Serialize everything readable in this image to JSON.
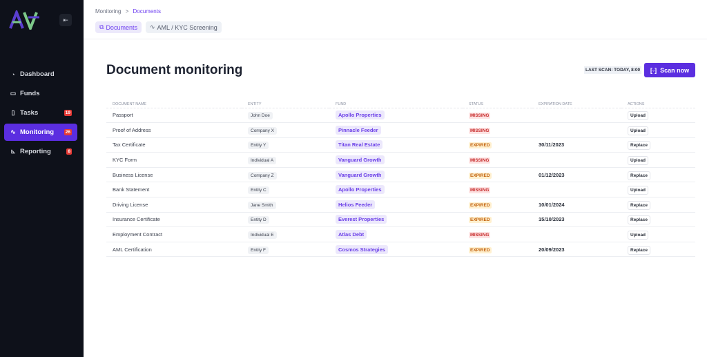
{
  "sidebar": {
    "logo_text": "AV",
    "items": [
      {
        "label": "Dashboard",
        "icon": "gauge-icon"
      },
      {
        "label": "Funds",
        "icon": "briefcase-icon"
      },
      {
        "label": "Tasks",
        "icon": "clipboard-icon",
        "badge": "19"
      },
      {
        "label": "Monitoring",
        "icon": "activity-icon",
        "badge": "26",
        "active": true
      },
      {
        "label": "Reporting",
        "icon": "chart-icon",
        "badge": "8"
      }
    ]
  },
  "breadcrumb": {
    "parent": "Monitoring",
    "separator": ">",
    "current": "Documents"
  },
  "tabs": [
    {
      "label": "Documents",
      "active": true
    },
    {
      "label": "AML / KYC Screening"
    }
  ],
  "page_title": "Document monitoring",
  "last_scan": "LAST SCAN: TODAY, 8:00",
  "scan_button": "Scan now",
  "colors": {
    "accent": "#5b2ee0",
    "sidebar": "#0e111a",
    "missing": "#c62828",
    "expired": "#c2610c"
  },
  "table": {
    "columns": [
      "DOCUMENT NAME",
      "ENTITY",
      "FUND",
      "STATUS",
      "EXPIRATION DATE",
      "ACTIONS"
    ],
    "rows": [
      {
        "name": "Passport",
        "entity": "John Doe",
        "fund": "Apollo Properties",
        "status": "MISSING",
        "date": "",
        "action": "Upload"
      },
      {
        "name": "Proof of Address",
        "entity": "Company X",
        "fund": "Pinnacle Feeder",
        "status": "MISSING",
        "date": "",
        "action": "Upload"
      },
      {
        "name": "Tax Certificate",
        "entity": "Entity Y",
        "fund": "Titan Real Estate",
        "status": "EXPIRED",
        "date": "30/11/2023",
        "action": "Replace"
      },
      {
        "name": "KYC Form",
        "entity": "Individual A",
        "fund": "Vanguard Growth",
        "status": "MISSING",
        "date": "",
        "action": "Upload"
      },
      {
        "name": "Business License",
        "entity": "Company Z",
        "fund": "Vanguard Growth",
        "status": "EXPIRED",
        "date": "01/12/2023",
        "action": "Replace"
      },
      {
        "name": "Bank Statement",
        "entity": "Entity C",
        "fund": "Apollo Properties",
        "status": "MISSING",
        "date": "",
        "action": "Upload"
      },
      {
        "name": "Driving License",
        "entity": "Jane Smith",
        "fund": "Helios Feeder",
        "status": "EXPIRED",
        "date": "10/01/2024",
        "action": "Replace"
      },
      {
        "name": "Insurance Certificate",
        "entity": "Entity D",
        "fund": "Everest Properties",
        "status": "EXPIRED",
        "date": "15/10/2023",
        "action": "Replace"
      },
      {
        "name": "Employment Contract",
        "entity": "Individual E",
        "fund": "Atlas Debt",
        "status": "MISSING",
        "date": "",
        "action": "Upload"
      },
      {
        "name": "AML Certification",
        "entity": "Entity F",
        "fund": "Cosmos Strategies",
        "status": "EXPIRED",
        "date": "20/09/2023",
        "action": "Replace"
      }
    ]
  }
}
